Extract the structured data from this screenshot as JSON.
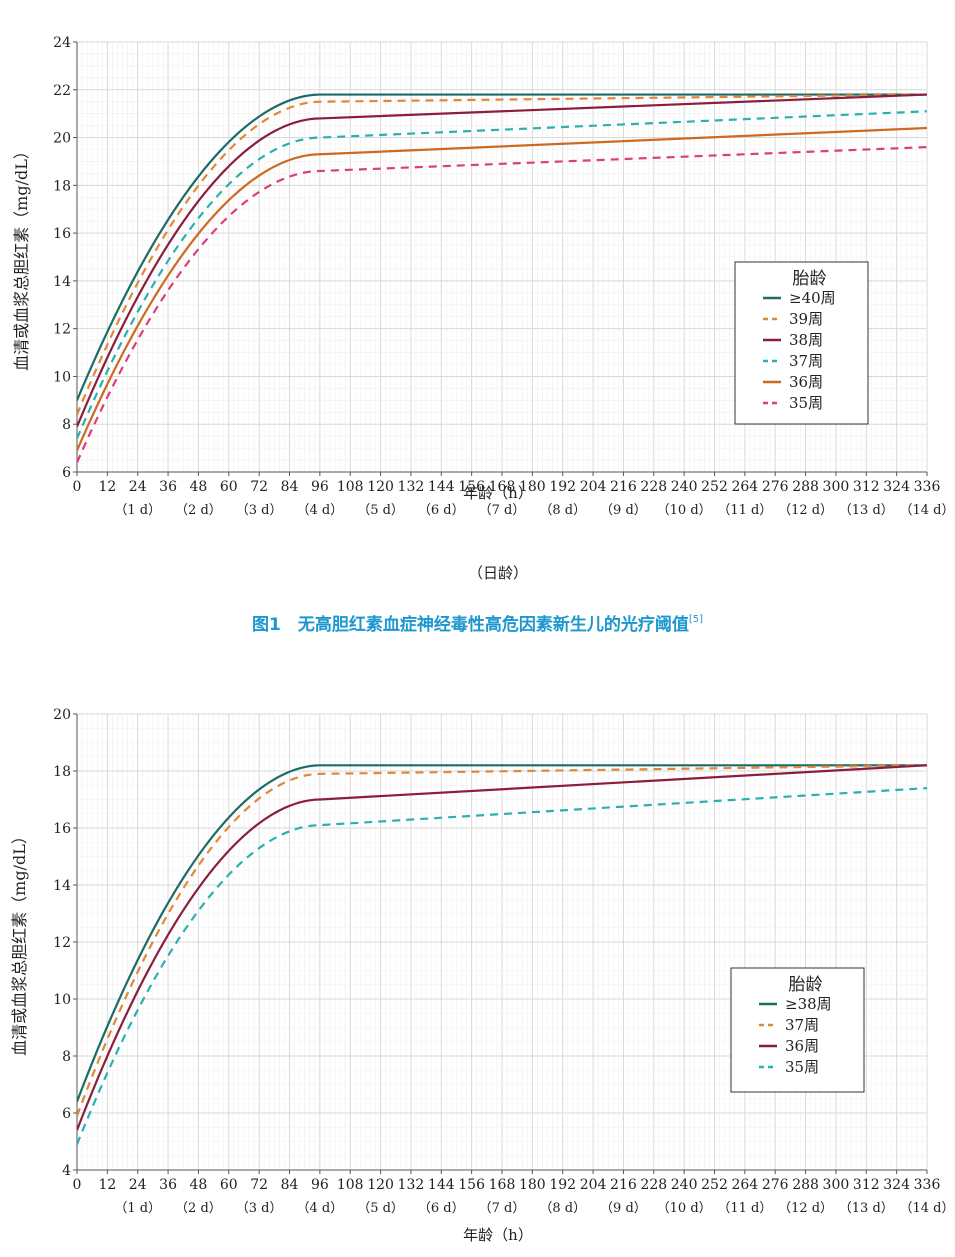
{
  "caption": {
    "text": "图1　无高胆红素血症神经毒性高危因素新生儿的光疗阈值",
    "ref": "[5]"
  },
  "chart_data": [
    {
      "type": "line",
      "ylabel": "血清或血浆总胆红素（mg/dL）",
      "xlabel": "年龄（h）",
      "xlabel2": "（日龄）",
      "xlim": [
        0,
        336
      ],
      "ylim": [
        6,
        24
      ],
      "yticks": [
        6,
        8,
        10,
        12,
        14,
        16,
        18,
        20,
        22,
        24
      ],
      "xticks": [
        0,
        12,
        24,
        36,
        48,
        60,
        72,
        84,
        96,
        108,
        120,
        132,
        144,
        156,
        168,
        180,
        192,
        204,
        216,
        228,
        240,
        252,
        264,
        276,
        288,
        300,
        312,
        324,
        336
      ],
      "day_ticks": [
        {
          "x": 24,
          "label": "（1 d）"
        },
        {
          "x": 48,
          "label": "（2 d）"
        },
        {
          "x": 72,
          "label": "（3 d）"
        },
        {
          "x": 96,
          "label": "（4 d）"
        },
        {
          "x": 120,
          "label": "（5 d）"
        },
        {
          "x": 144,
          "label": "（6 d）"
        },
        {
          "x": 168,
          "label": "（7 d）"
        },
        {
          "x": 192,
          "label": "（8 d）"
        },
        {
          "x": 216,
          "label": "（9 d）"
        },
        {
          "x": 240,
          "label": "（10 d）"
        },
        {
          "x": 264,
          "label": "（11 d）"
        },
        {
          "x": 288,
          "label": "（12 d）"
        },
        {
          "x": 312,
          "label": "（13 d）"
        },
        {
          "x": 336,
          "label": "（14 d）"
        }
      ],
      "grid": true,
      "legend": {
        "title": "胎龄",
        "placement": "right"
      },
      "series": [
        {
          "name": "≥40周",
          "color": "#1c6b67",
          "dash": false,
          "start": 9.0,
          "plateau": 21.8,
          "end": 21.8
        },
        {
          "name": "39周",
          "color": "#e0883a",
          "dash": true,
          "start": 8.4,
          "plateau": 21.5,
          "end": 21.8
        },
        {
          "name": "38周",
          "color": "#8b1d3d",
          "dash": false,
          "start": 7.9,
          "plateau": 20.8,
          "end": 21.8
        },
        {
          "name": "37周",
          "color": "#2ab0b0",
          "dash": true,
          "start": 7.4,
          "plateau": 20.0,
          "end": 21.1
        },
        {
          "name": "36周",
          "color": "#cc6a22",
          "dash": false,
          "start": 6.9,
          "plateau": 19.3,
          "end": 20.4
        },
        {
          "name": "35周",
          "color": "#dc3f77",
          "dash": true,
          "start": 6.4,
          "plateau": 18.6,
          "end": 19.6
        }
      ]
    },
    {
      "type": "line",
      "ylabel": "血清或血浆总胆红素（mg/dL）",
      "xlabel": "年龄（h）",
      "xlabel2": "",
      "xlim": [
        0,
        336
      ],
      "ylim": [
        4,
        20
      ],
      "yticks": [
        4,
        6,
        8,
        10,
        12,
        14,
        16,
        18,
        20
      ],
      "xticks": [
        0,
        12,
        24,
        36,
        48,
        60,
        72,
        84,
        96,
        108,
        120,
        132,
        144,
        156,
        168,
        180,
        192,
        204,
        216,
        228,
        240,
        252,
        264,
        276,
        288,
        300,
        312,
        324,
        336
      ],
      "day_ticks": [
        {
          "x": 24,
          "label": "（1 d）"
        },
        {
          "x": 48,
          "label": "（2 d）"
        },
        {
          "x": 72,
          "label": "（3 d）"
        },
        {
          "x": 96,
          "label": "（4 d）"
        },
        {
          "x": 120,
          "label": "（5 d）"
        },
        {
          "x": 144,
          "label": "（6 d）"
        },
        {
          "x": 168,
          "label": "（7 d）"
        },
        {
          "x": 192,
          "label": "（8 d）"
        },
        {
          "x": 216,
          "label": "（9 d）"
        },
        {
          "x": 240,
          "label": "（10 d）"
        },
        {
          "x": 264,
          "label": "（11 d）"
        },
        {
          "x": 288,
          "label": "（12 d）"
        },
        {
          "x": 312,
          "label": "（13 d）"
        },
        {
          "x": 336,
          "label": "（14 d）"
        }
      ],
      "grid": true,
      "legend": {
        "title": "胎龄",
        "placement": "right"
      },
      "series": [
        {
          "name": "≥38周",
          "color": "#1c6b67",
          "dash": false,
          "start": 6.4,
          "plateau": 18.2,
          "end": 18.2
        },
        {
          "name": "37周",
          "color": "#e0883a",
          "dash": true,
          "start": 5.9,
          "plateau": 17.9,
          "end": 18.2
        },
        {
          "name": "36周",
          "color": "#8b1d3d",
          "dash": false,
          "start": 5.4,
          "plateau": 17.0,
          "end": 18.2
        },
        {
          "name": "35周",
          "color": "#2ab0b0",
          "dash": true,
          "start": 4.9,
          "plateau": 16.1,
          "end": 17.4
        }
      ]
    }
  ]
}
